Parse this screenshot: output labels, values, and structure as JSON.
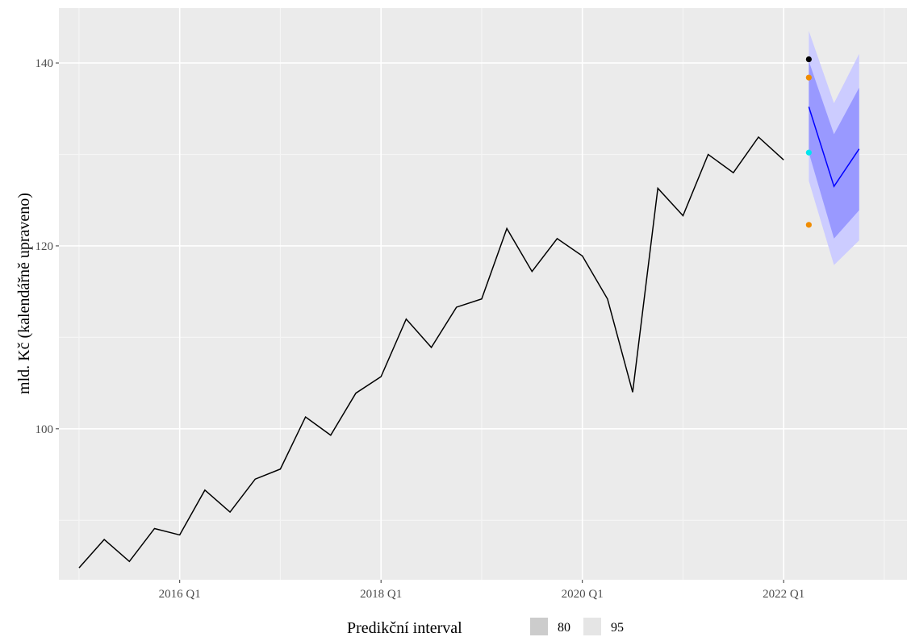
{
  "chart_data": {
    "type": "line",
    "title": "",
    "xlabel": "",
    "ylabel": "mld. Kč (kalendářně upraveno)",
    "x_ticks": [
      "2016 Q1",
      "2018 Q1",
      "2020 Q1",
      "2022 Q1"
    ],
    "y_ticks": [
      100,
      120,
      140
    ],
    "ylim": [
      83.5,
      146
    ],
    "grid": true,
    "colors": {
      "panel": "#ebebeb",
      "grid_major": "#ffffff",
      "grid_minor": "#f5f5f5",
      "history": "#000000",
      "forecast": "#0000ff",
      "band80": "#9999ff",
      "band95": "#ccccff",
      "legend80": "#cccccc",
      "legend95": "#e5e5e5",
      "point_black": "#000000",
      "point_orange": "#f08c00",
      "point_cyan": "#00e5ee"
    },
    "history": {
      "x": [
        "2015 Q1",
        "2015 Q2",
        "2015 Q3",
        "2015 Q4",
        "2016 Q1",
        "2016 Q2",
        "2016 Q3",
        "2016 Q4",
        "2017 Q1",
        "2017 Q2",
        "2017 Q3",
        "2017 Q4",
        "2018 Q1",
        "2018 Q2",
        "2018 Q3",
        "2018 Q4",
        "2019 Q1",
        "2019 Q2",
        "2019 Q3",
        "2019 Q4",
        "2020 Q1",
        "2020 Q2",
        "2020 Q3",
        "2020 Q4",
        "2021 Q1",
        "2021 Q2",
        "2021 Q3",
        "2021 Q4",
        "2022 Q1"
      ],
      "values": [
        84.8,
        87.9,
        85.5,
        89.1,
        88.4,
        93.3,
        90.9,
        94.5,
        95.6,
        101.3,
        99.3,
        103.9,
        105.7,
        112.0,
        108.9,
        113.3,
        114.2,
        121.9,
        117.2,
        120.8,
        118.9,
        114.2,
        104.0,
        126.3,
        123.3,
        130.0,
        128.0,
        131.9,
        129.4
      ]
    },
    "forecast": {
      "x": [
        "2022 Q2",
        "2022 Q3",
        "2022 Q4"
      ],
      "mean": [
        135.2,
        126.5,
        130.6
      ],
      "lo80": [
        130.2,
        120.8,
        123.9
      ],
      "hi80": [
        140.2,
        132.2,
        137.3
      ],
      "lo95": [
        127.1,
        117.9,
        120.6
      ],
      "hi95": [
        143.5,
        135.6,
        141.0
      ]
    },
    "points": [
      {
        "x": "2022 Q2",
        "y": 140.4,
        "color": "#000000"
      },
      {
        "x": "2022 Q2",
        "y": 138.4,
        "color": "#f08c00"
      },
      {
        "x": "2022 Q2",
        "y": 130.2,
        "color": "#00e5ee"
      },
      {
        "x": "2022 Q2",
        "y": 122.3,
        "color": "#f08c00"
      }
    ],
    "legend": {
      "title": "Predikční interval",
      "position": "bottom",
      "items": [
        {
          "label": "80",
          "color": "#cccccc"
        },
        {
          "label": "95",
          "color": "#e5e5e5"
        }
      ]
    }
  }
}
